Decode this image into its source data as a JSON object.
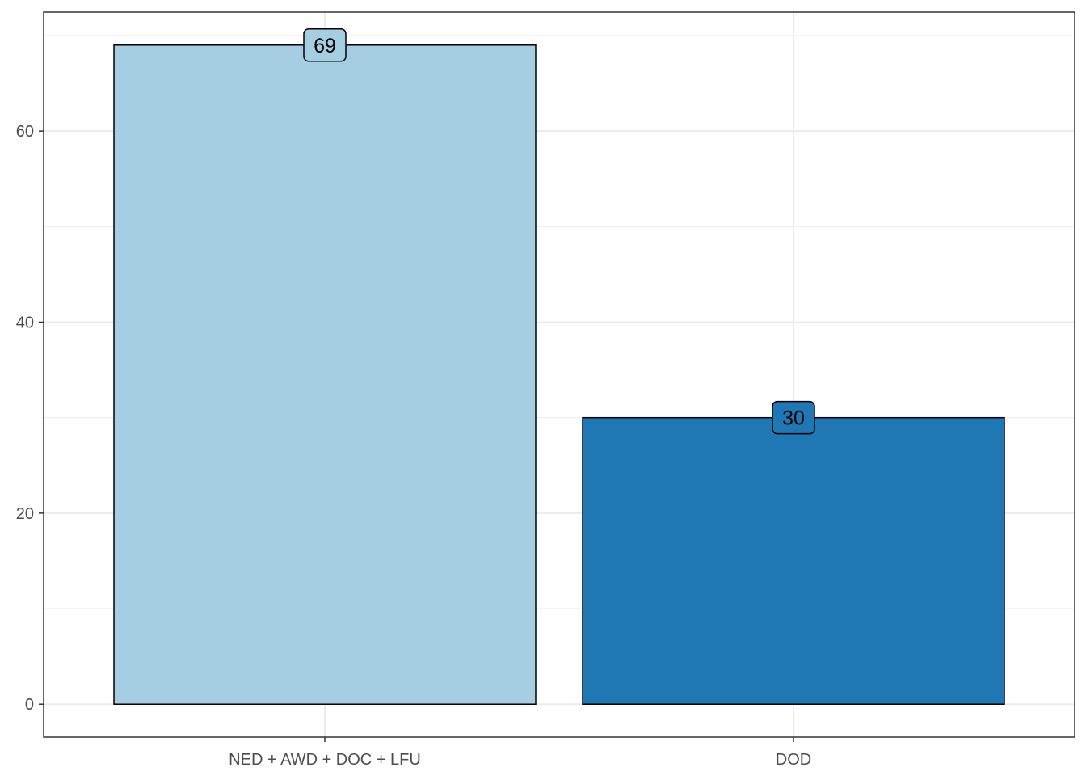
{
  "chart_data": {
    "type": "bar",
    "title": "",
    "xlabel": "",
    "ylabel": "",
    "categories": [
      "NED + AWD + DOC + LFU",
      "DOD"
    ],
    "values": [
      69,
      30
    ],
    "data_labels": [
      "69",
      "30"
    ],
    "colors": [
      "#a6cee3",
      "#1f78b4"
    ],
    "ylim": [
      -3.45,
      72.45
    ],
    "yticks": [
      0,
      20,
      40,
      60
    ],
    "ytick_labels": [
      "0",
      "20",
      "40",
      "60"
    ],
    "grid": true,
    "legend": "none"
  }
}
